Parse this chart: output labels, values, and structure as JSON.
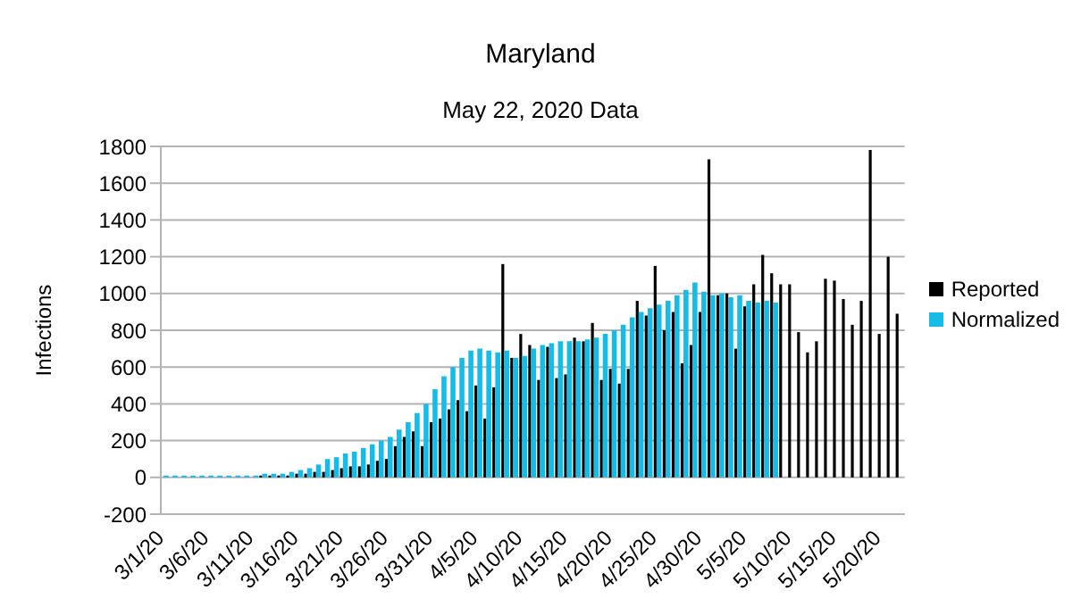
{
  "chart_data": {
    "type": "bar",
    "title": "Maryland",
    "subtitle": "May 22, 2020 Data",
    "ylabel": "Infections",
    "categories": [
      "3/1/20",
      null,
      null,
      null,
      null,
      "3/6/20",
      null,
      null,
      null,
      null,
      "3/11/20",
      null,
      null,
      null,
      null,
      "3/16/20",
      null,
      null,
      null,
      null,
      "3/21/20",
      null,
      null,
      null,
      null,
      "3/26/20",
      null,
      null,
      null,
      null,
      "3/31/20",
      null,
      null,
      null,
      null,
      "4/5/20",
      null,
      null,
      null,
      null,
      "4/10/20",
      null,
      null,
      null,
      null,
      "4/15/20",
      null,
      null,
      null,
      null,
      "4/20/20",
      null,
      null,
      null,
      null,
      "4/25/20",
      null,
      null,
      null,
      null,
      "4/30/20",
      null,
      null,
      null,
      null,
      "5/5/20",
      null,
      null,
      null,
      null,
      "5/10/20",
      null,
      null,
      null,
      null,
      "5/15/20",
      null,
      null,
      null,
      null,
      "5/20/20",
      null,
      null
    ],
    "series": [
      {
        "name": "Reported",
        "color": "#000000",
        "values": [
          0,
          0,
          0,
          0,
          0,
          0,
          0,
          0,
          0,
          0,
          0,
          10,
          10,
          10,
          10,
          20,
          20,
          30,
          30,
          40,
          50,
          60,
          60,
          70,
          90,
          100,
          170,
          220,
          250,
          170,
          300,
          320,
          370,
          420,
          360,
          500,
          320,
          490,
          1160,
          650,
          780,
          720,
          530,
          710,
          540,
          560,
          760,
          740,
          840,
          530,
          590,
          510,
          590,
          960,
          880,
          1150,
          800,
          900,
          620,
          720,
          900,
          1730,
          990,
          1000,
          700,
          930,
          1050,
          1210,
          1110,
          1050,
          1050,
          790,
          680,
          740,
          1080,
          1070,
          970,
          830,
          960,
          1780,
          780,
          1200,
          890
        ]
      },
      {
        "name": "Normalized",
        "color": "#17bce6",
        "values": [
          10,
          10,
          10,
          10,
          10,
          10,
          10,
          10,
          10,
          10,
          10,
          20,
          20,
          20,
          30,
          40,
          50,
          70,
          100,
          110,
          130,
          140,
          160,
          180,
          200,
          220,
          260,
          300,
          350,
          400,
          480,
          550,
          600,
          650,
          690,
          700,
          690,
          680,
          690,
          650,
          660,
          700,
          720,
          730,
          740,
          740,
          740,
          750,
          760,
          780,
          800,
          830,
          870,
          900,
          920,
          940,
          960,
          990,
          1020,
          1060,
          1010,
          990,
          1000,
          980,
          990,
          960,
          950,
          960,
          950,
          null,
          null,
          null,
          null,
          null,
          null,
          null,
          null,
          null,
          null,
          null,
          null,
          null,
          null
        ]
      }
    ],
    "ylim": [
      -200,
      1800
    ],
    "yticks": [
      -200,
      0,
      200,
      400,
      600,
      800,
      1000,
      1200,
      1400,
      1600,
      1800
    ],
    "grid": "y",
    "legend": "right"
  }
}
